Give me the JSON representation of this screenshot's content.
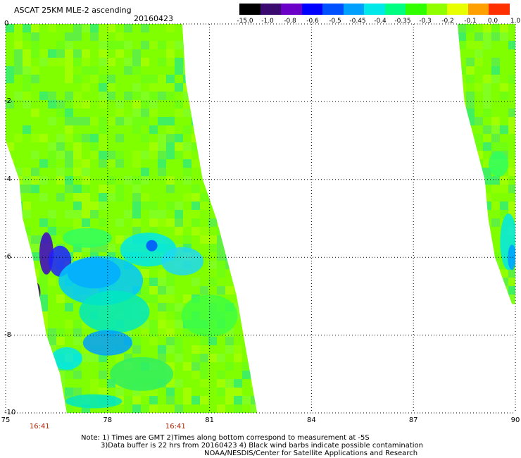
{
  "header": {
    "title": "ASCAT 25KM MLE-2 ascending",
    "date": "20160423"
  },
  "colorbar": {
    "labels": [
      "-15.0",
      "-1.0",
      "-0.8",
      "-0.6",
      "-0.5",
      "-0.45",
      "-0.4",
      "-0.35",
      "-0.3",
      "-0.2",
      "-0.1",
      "0.0",
      "1.0"
    ],
    "colors": [
      "#000000",
      "#3a0a6e",
      "#6a00c8",
      "#0000ff",
      "#0050ff",
      "#00a0ff",
      "#00e8e8",
      "#00ff80",
      "#30ff00",
      "#90ff00",
      "#e8ff00",
      "#ffa000",
      "#ff3000"
    ]
  },
  "axes": {
    "x_ticks": [
      "75",
      "78",
      "81",
      "84",
      "87",
      "90"
    ],
    "y_ticks": [
      "0",
      "-2",
      "-4",
      "-6",
      "-8",
      "-10"
    ],
    "lon_range": [
      75,
      90
    ],
    "lat_range": [
      -10,
      0
    ],
    "grid": "dotted"
  },
  "times": [
    {
      "label": "16:41",
      "lon": 76
    },
    {
      "label": "16:41",
      "lon": 80
    }
  ],
  "swaths": [
    {
      "edges": [
        {
          "lat": 0.0,
          "west": 75.0,
          "east": 80.2
        },
        {
          "lat": -1.5,
          "west": 75.0,
          "east": 80.3
        },
        {
          "lat": -3.0,
          "west": 75.0,
          "east": 80.6
        },
        {
          "lat": -4.0,
          "west": 75.4,
          "east": 80.8
        },
        {
          "lat": -5.0,
          "west": 75.5,
          "east": 81.2
        },
        {
          "lat": -6.0,
          "west": 75.8,
          "east": 81.5
        },
        {
          "lat": -7.0,
          "west": 76.0,
          "east": 81.8
        },
        {
          "lat": -8.0,
          "west": 76.2,
          "east": 82.0
        },
        {
          "lat": -9.0,
          "west": 76.6,
          "east": 82.2
        },
        {
          "lat": -10.0,
          "west": 76.8,
          "east": 82.4
        }
      ]
    },
    {
      "edges": [
        {
          "lat": 0.0,
          "west": 88.3,
          "east": 90.0
        },
        {
          "lat": -2.0,
          "west": 88.5,
          "east": 90.0
        },
        {
          "lat": -4.0,
          "west": 89.1,
          "east": 90.0
        },
        {
          "lat": -5.0,
          "west": 89.2,
          "east": 90.0
        },
        {
          "lat": -6.0,
          "west": 89.4,
          "east": 90.0
        },
        {
          "lat": -7.2,
          "west": 89.9,
          "east": 90.0
        }
      ]
    }
  ],
  "notes": [
    "Note: 1) Times are GMT 2)Times along bottom correspond to measurement at -5S",
    "3)Data buffer is 22 hrs from 20160423 4) Black wind barbs indicate possible contamination",
    "NOAA/NESDIS/Center for Satellite Applications and Research"
  ]
}
